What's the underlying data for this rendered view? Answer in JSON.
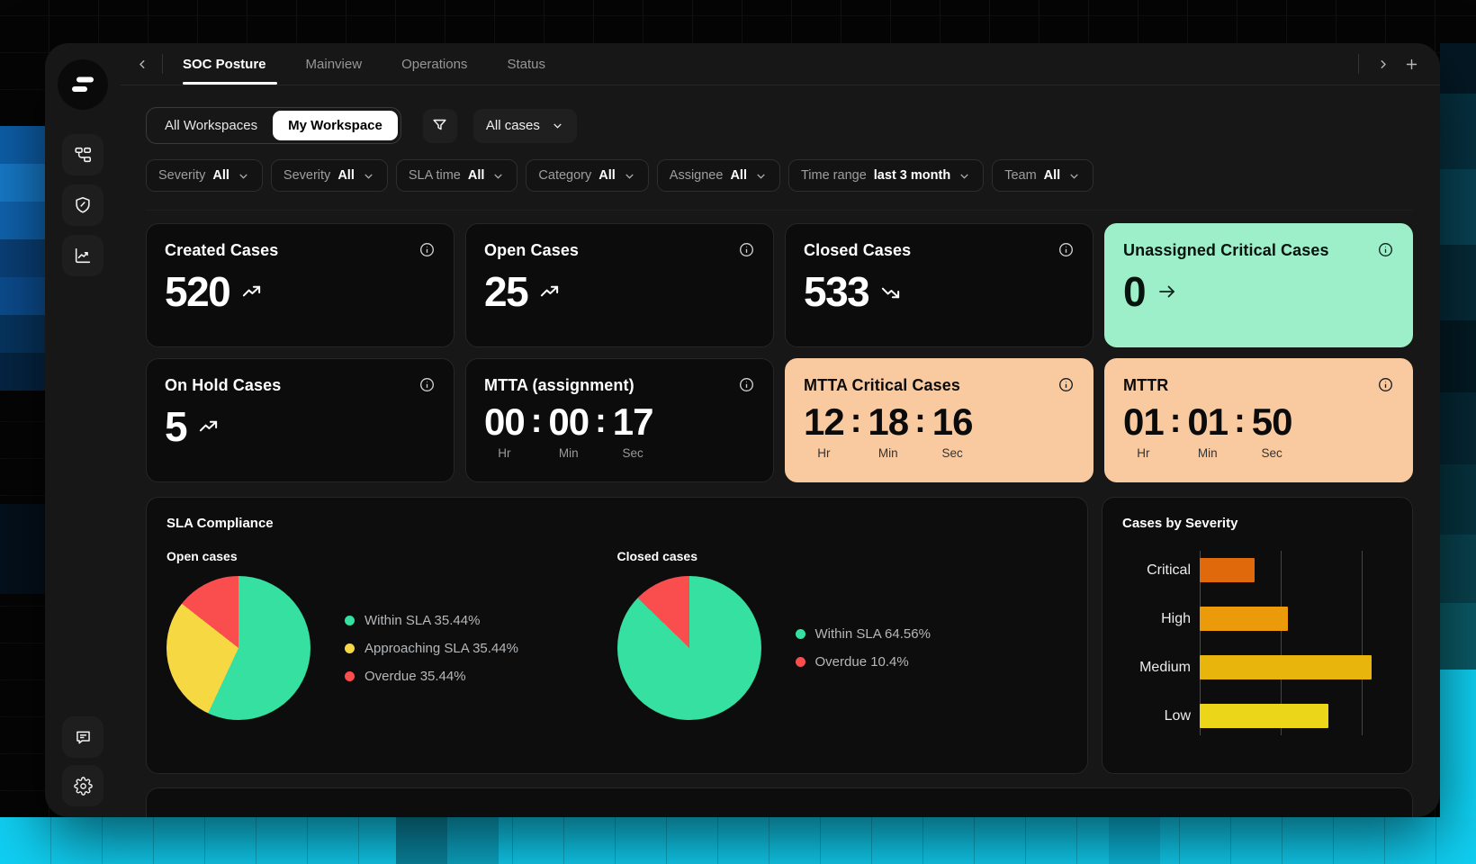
{
  "punct": {
    "colon": ":"
  },
  "tabs": {
    "items": [
      {
        "label": "SOC Posture",
        "active": true
      },
      {
        "label": "Mainview",
        "active": false
      },
      {
        "label": "Operations",
        "active": false
      },
      {
        "label": "Status",
        "active": false
      }
    ]
  },
  "toolbar": {
    "workspace_all": "All Workspaces",
    "workspace_my": "My Workspace",
    "cases_dropdown": "All cases"
  },
  "filters": [
    {
      "label": "Severity",
      "value": "All"
    },
    {
      "label": "Severity",
      "value": "All"
    },
    {
      "label": "SLA time",
      "value": "All"
    },
    {
      "label": "Category",
      "value": "All"
    },
    {
      "label": "Assignee",
      "value": "All"
    },
    {
      "label": "Time range",
      "value": "last 3 month"
    },
    {
      "label": "Team",
      "value": "All"
    }
  ],
  "kpi_cards": [
    {
      "title": "Created Cases",
      "value": "520",
      "trend": "up"
    },
    {
      "title": "Open Cases",
      "value": "25",
      "trend": "up"
    },
    {
      "title": "Closed Cases",
      "value": "533",
      "trend": "down"
    },
    {
      "title": "Unassigned Critical Cases",
      "value": "0",
      "trend": "right",
      "variant": "green"
    },
    {
      "title": "On Hold Cases",
      "value": "5",
      "trend": "up"
    },
    {
      "title": "MTTA (assignment)",
      "hr": "00",
      "min": "00",
      "sec": "17",
      "hr_label": "Hr",
      "min_label": "Min",
      "sec_label": "Sec"
    },
    {
      "title": "MTTA Critical Cases",
      "hr": "12",
      "min": "18",
      "sec": "16",
      "hr_label": "Hr",
      "min_label": "Min",
      "sec_label": "Sec",
      "variant": "orange"
    },
    {
      "title": "MTTR",
      "hr": "01",
      "min": "01",
      "sec": "50",
      "hr_label": "Hr",
      "min_label": "Min",
      "sec_label": "Sec",
      "variant": "orange"
    }
  ],
  "sla_panel": {
    "title": "SLA Compliance",
    "open": {
      "subtitle": "Open cases",
      "legend": [
        {
          "label": "Within SLA 35.44%"
        },
        {
          "label": "Approaching SLA 35.44%"
        },
        {
          "label": "Overdue 35.44%"
        }
      ]
    },
    "closed": {
      "subtitle": "Closed cases",
      "legend": [
        {
          "label": "Within SLA 64.56%"
        },
        {
          "label": "Overdue 10.4%"
        }
      ]
    }
  },
  "severity_panel": {
    "title": "Cases by Severity"
  },
  "colors": {
    "green_card_bg": "#9defca",
    "orange_card_bg": "#f9caa0",
    "pie_green": "#35e0a1",
    "pie_yellow": "#f6d843",
    "pie_red": "#fa4e4e",
    "bar_critical": "#e0690c",
    "bar_high": "#eb9b09",
    "bar_medium": "#e8b50c",
    "bar_low": "#ecd61a"
  },
  "chart_data": [
    {
      "type": "pie",
      "name": "sla-open-cases",
      "title": "Open cases",
      "legend_position": "right",
      "segments": [
        {
          "label": "Within SLA",
          "label_pct": 35.44,
          "sweep_deg": 205,
          "color": "#35e0a1"
        },
        {
          "label": "Approaching SLA",
          "label_pct": 35.44,
          "sweep_deg": 103,
          "color": "#f6d843"
        },
        {
          "label": "Overdue",
          "label_pct": 35.44,
          "sweep_deg": 52,
          "color": "#fa4e4e"
        }
      ]
    },
    {
      "type": "pie",
      "name": "sla-closed-cases",
      "title": "Closed cases",
      "legend_position": "right",
      "segments": [
        {
          "label": "Within SLA",
          "label_pct": 64.56,
          "sweep_deg": 314,
          "color": "#35e0a1"
        },
        {
          "label": "Overdue",
          "label_pct": 10.4,
          "sweep_deg": 46,
          "color": "#fa4e4e"
        }
      ]
    },
    {
      "type": "bar",
      "name": "cases-by-severity",
      "title": "Cases by Severity",
      "orientation": "horizontal",
      "categories": [
        "Critical",
        "High",
        "Medium",
        "Low"
      ],
      "bar_pct_of_plot": [
        28.3,
        45.7,
        89.1,
        66.8
      ],
      "colors": [
        "#e0690c",
        "#eb9b09",
        "#e8b50c",
        "#ecd61a"
      ],
      "gridlines_pct": [
        42.1,
        84.2
      ],
      "axis_values_labeled": false
    }
  ]
}
